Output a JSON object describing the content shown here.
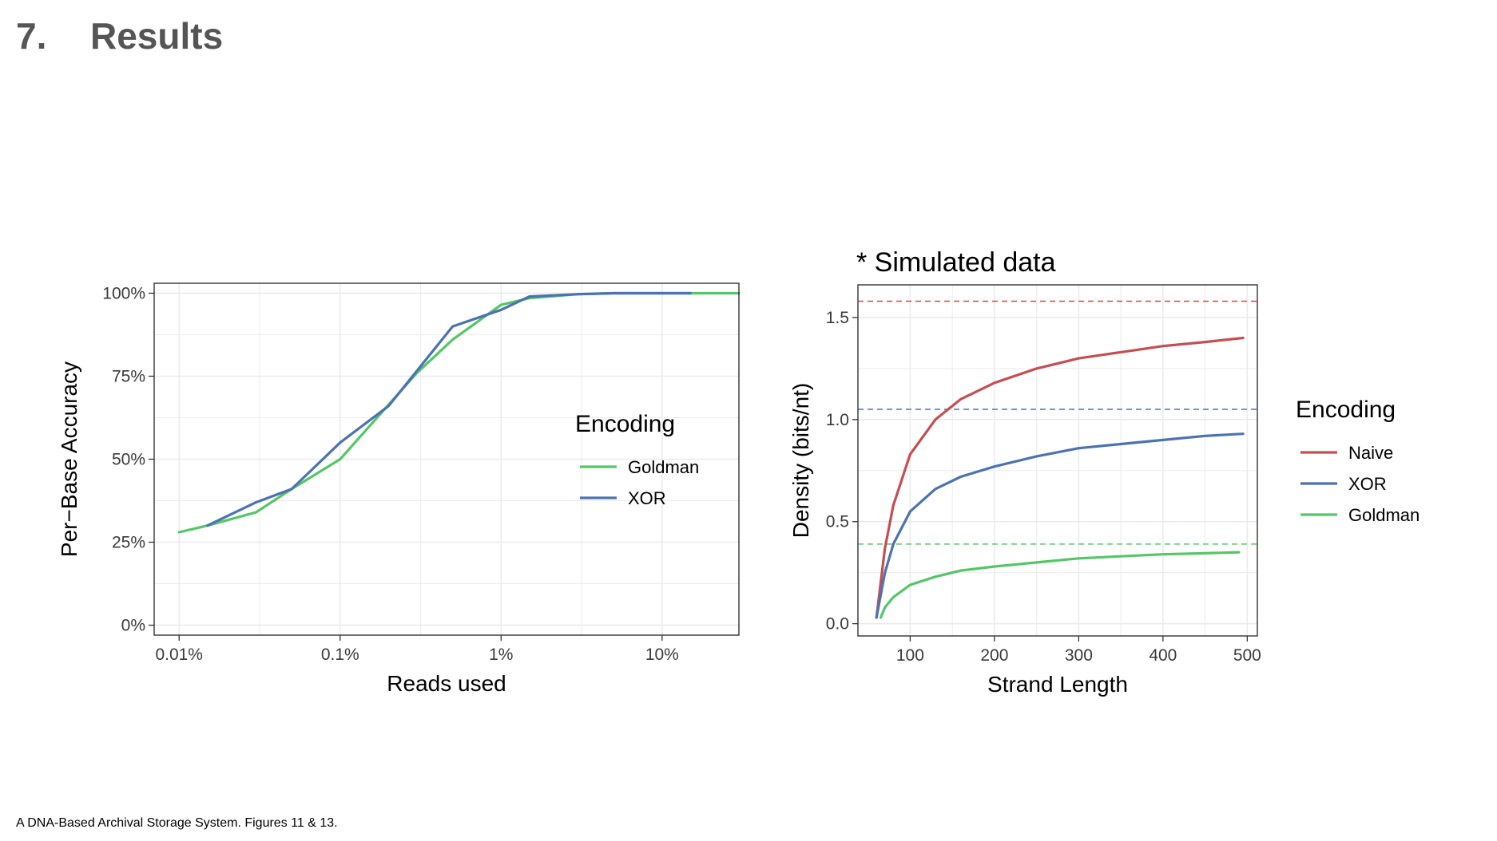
{
  "slide": {
    "number": "7.",
    "title": "Results",
    "caption": "A DNA-Based Archival Storage System. Figures 11 & 13.",
    "note": "* Simulated data"
  },
  "colors": {
    "title_text": "#555555",
    "panel_bg": "#ffffff",
    "grid": "#ebebeb",
    "naive": "#c44e52",
    "xor": "#4c72b0",
    "goldman": "#55c667"
  },
  "chart_data": [
    {
      "type": "line",
      "xlabel": "Reads used",
      "ylabel": "Per−Base Accuracy",
      "x_scale": "log10",
      "xlim": [
        7e-05,
        0.3
      ],
      "ylim": [
        -0.03,
        1.03
      ],
      "x_ticks": [
        0.0001,
        0.001,
        0.01,
        0.1
      ],
      "x_tick_labels": [
        "0.01%",
        "0.1%",
        "1%",
        "10%"
      ],
      "y_ticks": [
        0,
        0.25,
        0.5,
        0.75,
        1.0
      ],
      "y_tick_labels": [
        "0%",
        "25%",
        "50%",
        "75%",
        "100%"
      ],
      "grid": true,
      "legend": {
        "title": "Encoding",
        "placement": "inside-right"
      },
      "series": [
        {
          "name": "Goldman",
          "color": "#55c667",
          "x": [
            0.0001,
            0.00015,
            0.0003,
            0.0005,
            0.001,
            0.003,
            0.005,
            0.01,
            0.015,
            0.03,
            0.05,
            0.1,
            0.15,
            0.3
          ],
          "y": [
            0.28,
            0.3,
            0.34,
            0.41,
            0.5,
            0.76,
            0.86,
            0.965,
            0.985,
            0.997,
            1.0,
            1.0,
            1.0,
            1.0
          ]
        },
        {
          "name": "XOR",
          "color": "#4c72b0",
          "x": [
            0.00015,
            0.0003,
            0.0005,
            0.001,
            0.002,
            0.005,
            0.01,
            0.015,
            0.03,
            0.05,
            0.1,
            0.15
          ],
          "y": [
            0.3,
            0.37,
            0.41,
            0.55,
            0.66,
            0.9,
            0.95,
            0.99,
            0.997,
            1.0,
            1.0,
            1.0
          ]
        }
      ]
    },
    {
      "type": "line",
      "xlabel": "Strand Length",
      "ylabel": "Density (bits/nt)",
      "xlim": [
        38,
        512
      ],
      "ylim": [
        -0.06,
        1.66
      ],
      "x_ticks": [
        100,
        200,
        300,
        400,
        500
      ],
      "x_tick_labels": [
        "100",
        "200",
        "300",
        "400",
        "500"
      ],
      "y_ticks": [
        0.0,
        0.5,
        1.0,
        1.5
      ],
      "y_tick_labels": [
        "0.0",
        "0.5",
        "1.0",
        "1.5"
      ],
      "grid": true,
      "legend": {
        "title": "Encoding",
        "placement": "right"
      },
      "series": [
        {
          "name": "Naive",
          "color": "#c44e52",
          "x": [
            60,
            70,
            80,
            100,
            130,
            160,
            200,
            250,
            300,
            350,
            400,
            450,
            495
          ],
          "y": [
            0.03,
            0.37,
            0.58,
            0.83,
            1.0,
            1.1,
            1.18,
            1.25,
            1.3,
            1.33,
            1.36,
            1.38,
            1.4
          ]
        },
        {
          "name": "XOR",
          "color": "#4c72b0",
          "x": [
            60,
            70,
            80,
            100,
            130,
            160,
            200,
            250,
            300,
            350,
            400,
            450,
            495
          ],
          "y": [
            0.03,
            0.25,
            0.39,
            0.55,
            0.66,
            0.72,
            0.77,
            0.82,
            0.86,
            0.88,
            0.9,
            0.92,
            0.93
          ]
        },
        {
          "name": "Goldman",
          "color": "#55c667",
          "x": [
            65,
            70,
            80,
            100,
            130,
            160,
            200,
            250,
            300,
            350,
            400,
            450,
            490
          ],
          "y": [
            0.03,
            0.08,
            0.13,
            0.19,
            0.23,
            0.26,
            0.28,
            0.3,
            0.32,
            0.33,
            0.34,
            0.345,
            0.35
          ]
        }
      ],
      "reference_lines": [
        {
          "series": "Naive",
          "color": "#c44e52",
          "y": 1.58,
          "style": "dashed"
        },
        {
          "series": "XOR",
          "color": "#4c72b0",
          "y": 1.05,
          "style": "dashed"
        },
        {
          "series": "Goldman",
          "color": "#55c667",
          "y": 0.39,
          "style": "dashed"
        }
      ]
    }
  ]
}
